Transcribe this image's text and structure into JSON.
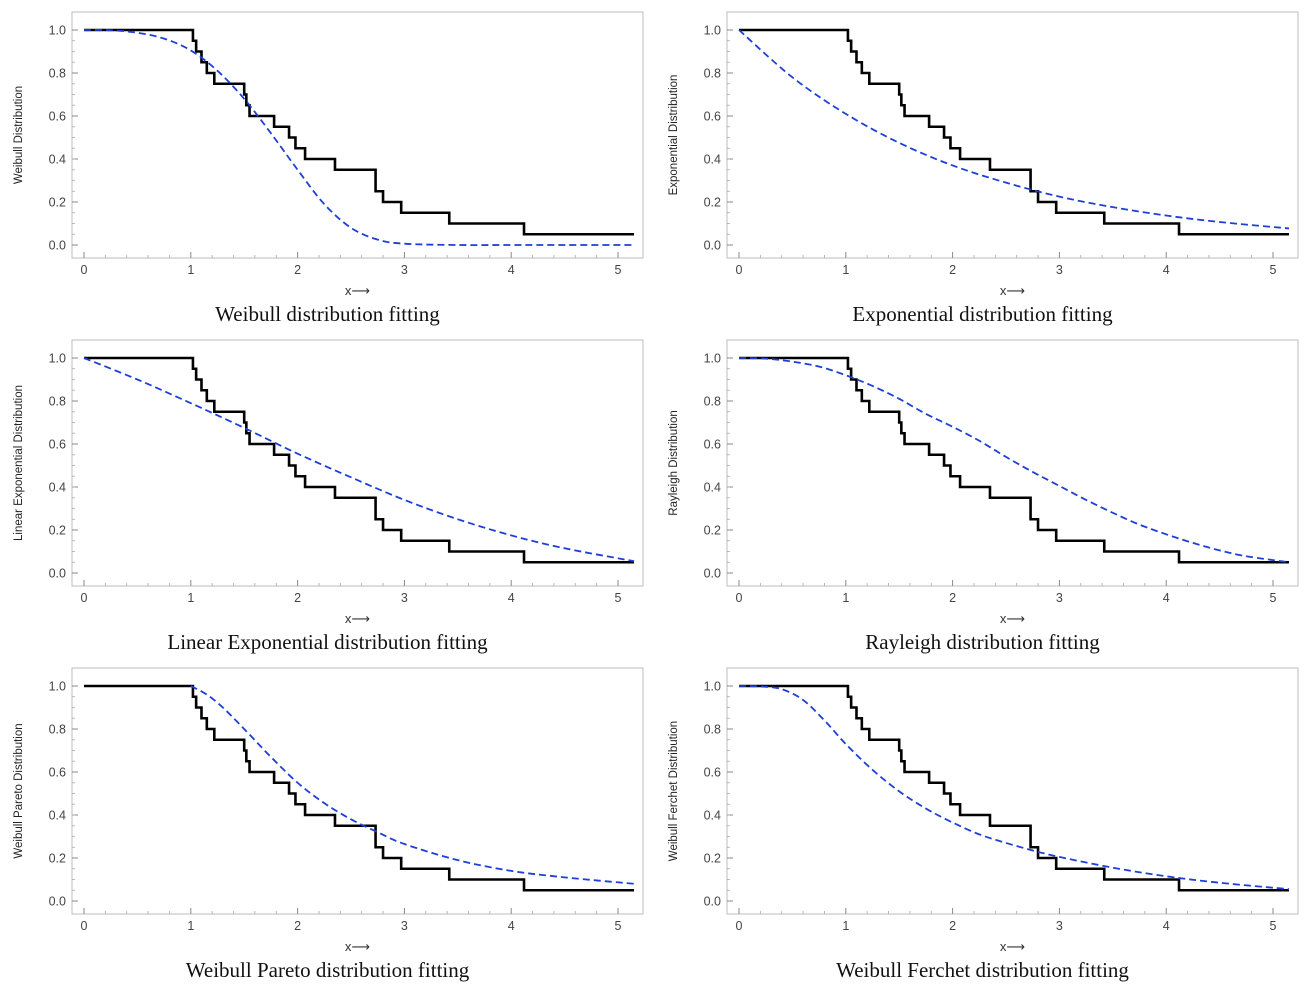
{
  "chart_data": [
    {
      "type": "line",
      "ylabel": "Weibull Distribution",
      "xlabel": "x⟶",
      "caption": "Weibull distribution fitting",
      "xlim": [
        0,
        5.15
      ],
      "ylim": [
        0,
        1
      ],
      "xticks": [
        "0",
        "1",
        "2",
        "3",
        "4",
        "5"
      ],
      "yticks": [
        "0.0",
        "0.2",
        "0.4",
        "0.6",
        "0.8",
        "1.0"
      ],
      "series": [
        {
          "style": "empirical-step",
          "color": "#000000",
          "x": [
            0,
            1.02,
            1.05,
            1.1,
            1.15,
            1.22,
            1.5,
            1.52,
            1.55,
            1.6,
            1.78,
            1.92,
            1.98,
            2.07,
            2.35,
            2.73,
            2.8,
            2.97,
            3.42,
            4.12,
            5.15
          ],
          "y": [
            1.0,
            0.95,
            0.9,
            0.85,
            0.8,
            0.75,
            0.7,
            0.65,
            0.6,
            0.6,
            0.55,
            0.5,
            0.45,
            0.4,
            0.35,
            0.25,
            0.2,
            0.15,
            0.1,
            0.05,
            0.05
          ]
        },
        {
          "style": "dashed-fit",
          "color": "#1f3fd6",
          "x": [
            0,
            0.25,
            0.5,
            0.75,
            1.0,
            1.25,
            1.5,
            1.75,
            2.0,
            2.25,
            2.5,
            2.75,
            3.0,
            3.5,
            4.0,
            4.5,
            5.15
          ],
          "y": [
            1.0,
            0.999,
            0.987,
            0.96,
            0.905,
            0.81,
            0.68,
            0.52,
            0.35,
            0.19,
            0.08,
            0.025,
            0.006,
            0.0,
            0.0,
            0.0,
            0.0
          ]
        }
      ]
    },
    {
      "type": "line",
      "ylabel": "Exponential Distribution",
      "xlabel": "x⟶",
      "caption": "Exponential distribution fitting",
      "xlim": [
        0,
        5.15
      ],
      "ylim": [
        0,
        1
      ],
      "xticks": [
        "0",
        "1",
        "2",
        "3",
        "4",
        "5"
      ],
      "yticks": [
        "0.0",
        "0.2",
        "0.4",
        "0.6",
        "0.8",
        "1.0"
      ],
      "series": [
        {
          "style": "empirical-step",
          "color": "#000000",
          "x": [
            0,
            1.02,
            1.05,
            1.1,
            1.15,
            1.22,
            1.5,
            1.52,
            1.55,
            1.6,
            1.78,
            1.92,
            1.98,
            2.07,
            2.35,
            2.73,
            2.8,
            2.97,
            3.42,
            4.12,
            5.15
          ],
          "y": [
            1.0,
            0.95,
            0.9,
            0.85,
            0.8,
            0.75,
            0.7,
            0.65,
            0.6,
            0.6,
            0.55,
            0.5,
            0.45,
            0.4,
            0.35,
            0.25,
            0.2,
            0.15,
            0.1,
            0.05,
            0.05
          ]
        },
        {
          "style": "dashed-fit",
          "color": "#1f3fd6",
          "x": [
            0,
            0.5,
            1.0,
            1.5,
            2.0,
            2.5,
            3.0,
            3.5,
            4.0,
            4.5,
            5.15
          ],
          "y": [
            1.0,
            0.78,
            0.61,
            0.475,
            0.37,
            0.29,
            0.225,
            0.176,
            0.137,
            0.107,
            0.077
          ]
        }
      ]
    },
    {
      "type": "line",
      "ylabel": "Linear Exponential Distribution",
      "xlabel": "x⟶",
      "caption": "Linear Exponential distribution fitting",
      "xlim": [
        0,
        5.15
      ],
      "ylim": [
        0,
        1
      ],
      "xticks": [
        "0",
        "1",
        "2",
        "3",
        "4",
        "5"
      ],
      "yticks": [
        "0.0",
        "0.2",
        "0.4",
        "0.6",
        "0.8",
        "1.0"
      ],
      "series": [
        {
          "style": "empirical-step",
          "color": "#000000",
          "x": [
            0,
            1.02,
            1.05,
            1.1,
            1.15,
            1.22,
            1.5,
            1.52,
            1.55,
            1.6,
            1.78,
            1.92,
            1.98,
            2.07,
            2.35,
            2.73,
            2.8,
            2.97,
            3.42,
            4.12,
            5.15
          ],
          "y": [
            1.0,
            0.95,
            0.9,
            0.85,
            0.8,
            0.75,
            0.7,
            0.65,
            0.6,
            0.6,
            0.55,
            0.5,
            0.45,
            0.4,
            0.35,
            0.25,
            0.2,
            0.15,
            0.1,
            0.05,
            0.05
          ]
        },
        {
          "style": "dashed-fit",
          "color": "#1f3fd6",
          "x": [
            0,
            0.5,
            1.0,
            1.5,
            2.0,
            2.5,
            3.0,
            3.5,
            4.0,
            4.5,
            5.15
          ],
          "y": [
            1.0,
            0.9,
            0.79,
            0.675,
            0.555,
            0.445,
            0.34,
            0.25,
            0.175,
            0.115,
            0.055
          ]
        }
      ]
    },
    {
      "type": "line",
      "ylabel": "Rayleigh Distribution",
      "xlabel": "x⟶",
      "caption": "Rayleigh distribution fitting",
      "xlim": [
        0,
        5.15
      ],
      "ylim": [
        0,
        1
      ],
      "xticks": [
        "0",
        "1",
        "2",
        "3",
        "4",
        "5"
      ],
      "yticks": [
        "0.0",
        "0.2",
        "0.4",
        "0.6",
        "0.8",
        "1.0"
      ],
      "series": [
        {
          "style": "empirical-step",
          "color": "#000000",
          "x": [
            0,
            1.02,
            1.05,
            1.1,
            1.15,
            1.22,
            1.5,
            1.52,
            1.55,
            1.6,
            1.78,
            1.92,
            1.98,
            2.07,
            2.35,
            2.73,
            2.8,
            2.97,
            3.42,
            4.12,
            5.15
          ],
          "y": [
            1.0,
            0.95,
            0.9,
            0.85,
            0.8,
            0.75,
            0.7,
            0.65,
            0.6,
            0.6,
            0.55,
            0.5,
            0.45,
            0.4,
            0.35,
            0.25,
            0.2,
            0.15,
            0.1,
            0.05,
            0.05
          ]
        },
        {
          "style": "dashed-fit",
          "color": "#1f3fd6",
          "x": [
            0,
            0.25,
            0.5,
            0.75,
            1.0,
            1.25,
            1.5,
            1.75,
            2.0,
            2.25,
            2.5,
            2.75,
            3.0,
            3.25,
            3.5,
            3.75,
            4.0,
            4.25,
            4.5,
            4.75,
            5.15
          ],
          "y": [
            1.0,
            0.997,
            0.983,
            0.96,
            0.92,
            0.87,
            0.81,
            0.74,
            0.68,
            0.615,
            0.54,
            0.47,
            0.405,
            0.34,
            0.28,
            0.225,
            0.18,
            0.14,
            0.105,
            0.078,
            0.05
          ]
        }
      ]
    },
    {
      "type": "line",
      "ylabel": "Weibull Pareto Distribution",
      "xlabel": "x⟶",
      "caption": "Weibull Pareto distribution fitting",
      "xlim": [
        0,
        5.15
      ],
      "ylim": [
        0,
        1
      ],
      "xticks": [
        "0",
        "1",
        "2",
        "3",
        "4",
        "5"
      ],
      "yticks": [
        "0.0",
        "0.2",
        "0.4",
        "0.6",
        "0.8",
        "1.0"
      ],
      "series": [
        {
          "style": "empirical-step",
          "color": "#000000",
          "x": [
            0,
            1.02,
            1.05,
            1.1,
            1.15,
            1.22,
            1.5,
            1.52,
            1.55,
            1.6,
            1.78,
            1.92,
            1.98,
            2.07,
            2.35,
            2.73,
            2.8,
            2.97,
            3.42,
            4.12,
            5.15
          ],
          "y": [
            1.0,
            0.95,
            0.9,
            0.85,
            0.8,
            0.75,
            0.7,
            0.65,
            0.6,
            0.6,
            0.55,
            0.5,
            0.45,
            0.4,
            0.35,
            0.25,
            0.2,
            0.15,
            0.1,
            0.05,
            0.05
          ]
        },
        {
          "style": "dashed-fit",
          "color": "#1f3fd6",
          "x": [
            1.0,
            1.15,
            1.3,
            1.5,
            1.75,
            2.0,
            2.25,
            2.5,
            2.75,
            3.0,
            3.5,
            4.0,
            4.5,
            5.15
          ],
          "y": [
            1.0,
            0.96,
            0.9,
            0.8,
            0.67,
            0.55,
            0.455,
            0.38,
            0.32,
            0.265,
            0.19,
            0.14,
            0.11,
            0.08
          ]
        }
      ]
    },
    {
      "type": "line",
      "ylabel": "Weibull Ferchet Distribution",
      "xlabel": "x⟶",
      "caption": "Weibull Ferchet distribution fitting",
      "xlim": [
        0,
        5.15
      ],
      "ylim": [
        0,
        1
      ],
      "xticks": [
        "0",
        "1",
        "2",
        "3",
        "4",
        "5"
      ],
      "yticks": [
        "0.0",
        "0.2",
        "0.4",
        "0.6",
        "0.8",
        "1.0"
      ],
      "series": [
        {
          "style": "empirical-step",
          "color": "#000000",
          "x": [
            0,
            1.02,
            1.05,
            1.1,
            1.15,
            1.22,
            1.5,
            1.52,
            1.55,
            1.6,
            1.78,
            1.92,
            1.98,
            2.07,
            2.35,
            2.73,
            2.8,
            2.97,
            3.42,
            4.12,
            5.15
          ],
          "y": [
            1.0,
            0.95,
            0.9,
            0.85,
            0.8,
            0.75,
            0.7,
            0.65,
            0.6,
            0.6,
            0.55,
            0.5,
            0.45,
            0.4,
            0.35,
            0.25,
            0.2,
            0.15,
            0.1,
            0.05,
            0.05
          ]
        },
        {
          "style": "dashed-fit",
          "color": "#1f3fd6",
          "x": [
            0,
            0.2,
            0.4,
            0.6,
            0.8,
            1.0,
            1.25,
            1.5,
            1.75,
            2.0,
            2.25,
            2.5,
            2.75,
            3.0,
            3.5,
            4.0,
            4.5,
            5.15
          ],
          "y": [
            1.0,
            0.998,
            0.985,
            0.935,
            0.84,
            0.73,
            0.61,
            0.51,
            0.43,
            0.365,
            0.31,
            0.27,
            0.235,
            0.205,
            0.155,
            0.115,
            0.085,
            0.055
          ]
        }
      ]
    }
  ]
}
